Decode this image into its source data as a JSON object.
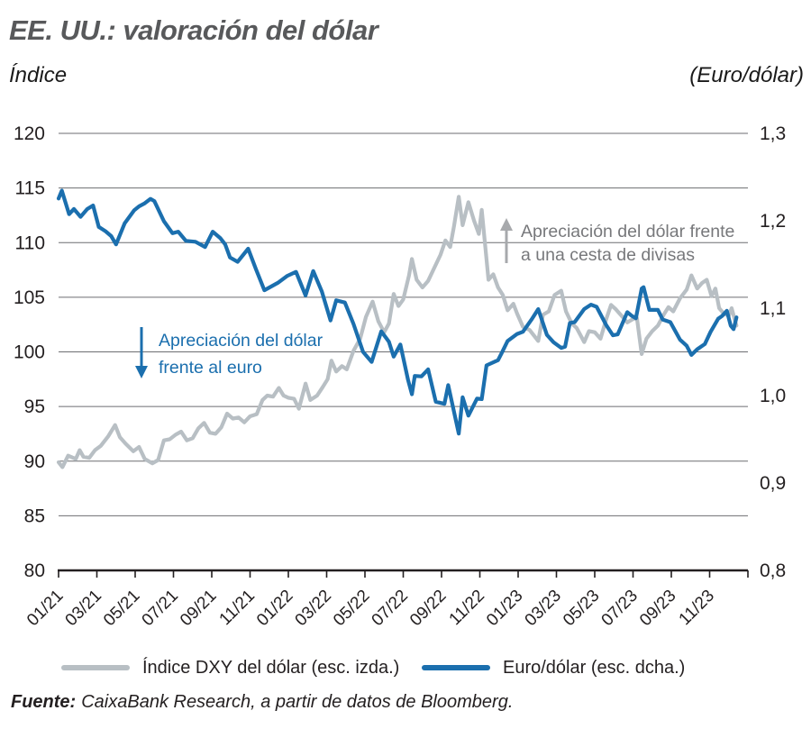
{
  "header": {
    "title": "EE. UU.: valoración del dólar",
    "left_axis_title": "Índice",
    "right_axis_title": "(Euro/dólar)"
  },
  "chart_data": {
    "type": "line",
    "title": "EE. UU.: valoración del dólar",
    "grid": true,
    "x_axis": {
      "unit": "month (01/21 = 0)",
      "span_months": 36,
      "tick_labels": [
        "01/21",
        "03/21",
        "05/21",
        "07/21",
        "09/21",
        "11/21",
        "01/22",
        "03/22",
        "05/22",
        "07/22",
        "09/22",
        "11/22",
        "01/23",
        "03/23",
        "05/23",
        "07/23",
        "09/23",
        "11/23"
      ]
    },
    "left_axis": {
      "label": "Índice",
      "min": 80,
      "max": 120,
      "tick_labels": [
        "120",
        "115",
        "110",
        "105",
        "100",
        "95",
        "90",
        "85",
        "80"
      ]
    },
    "right_axis": {
      "label": "(Euro/dólar)",
      "min": 0.8,
      "max": 1.3,
      "tick_labels": [
        "1,3",
        "1,2",
        "1,1",
        "1,0",
        "0,9",
        "0,8"
      ]
    },
    "series": [
      {
        "name": "Índice DXY del dólar (esc. izda.)",
        "axis": "left",
        "color": "#b8bfc4",
        "points": [
          [
            0.0,
            89.9
          ],
          [
            0.2,
            89.45
          ],
          [
            0.5,
            90.5
          ],
          [
            0.9,
            90.2
          ],
          [
            1.1,
            91.0
          ],
          [
            1.3,
            90.4
          ],
          [
            1.6,
            90.3
          ],
          [
            1.9,
            91.0
          ],
          [
            2.2,
            91.4
          ],
          [
            2.6,
            92.3
          ],
          [
            2.95,
            93.3
          ],
          [
            3.2,
            92.2
          ],
          [
            3.5,
            91.6
          ],
          [
            3.9,
            90.9
          ],
          [
            4.2,
            91.3
          ],
          [
            4.5,
            90.2
          ],
          [
            4.9,
            89.8
          ],
          [
            5.2,
            90.1
          ],
          [
            5.5,
            91.9
          ],
          [
            5.8,
            92.0
          ],
          [
            6.1,
            92.4
          ],
          [
            6.4,
            92.7
          ],
          [
            6.7,
            91.9
          ],
          [
            7.0,
            92.1
          ],
          [
            7.3,
            93.0
          ],
          [
            7.6,
            93.5
          ],
          [
            7.9,
            92.6
          ],
          [
            8.2,
            92.5
          ],
          [
            8.5,
            93.1
          ],
          [
            8.8,
            94.35
          ],
          [
            9.1,
            93.9
          ],
          [
            9.4,
            94.0
          ],
          [
            9.7,
            93.55
          ],
          [
            10.0,
            94.1
          ],
          [
            10.35,
            94.3
          ],
          [
            10.65,
            95.6
          ],
          [
            10.9,
            96.0
          ],
          [
            11.2,
            95.9
          ],
          [
            11.5,
            96.7
          ],
          [
            11.75,
            96.0
          ],
          [
            12.0,
            95.8
          ],
          [
            12.3,
            95.7
          ],
          [
            12.55,
            94.8
          ],
          [
            12.9,
            97.1
          ],
          [
            13.15,
            95.6
          ],
          [
            13.5,
            96.0
          ],
          [
            13.8,
            96.8
          ],
          [
            14.05,
            97.5
          ],
          [
            14.25,
            99.2
          ],
          [
            14.5,
            98.2
          ],
          [
            14.8,
            98.7
          ],
          [
            15.05,
            98.4
          ],
          [
            15.4,
            100.1
          ],
          [
            15.75,
            101.2
          ],
          [
            16.05,
            103.2
          ],
          [
            16.4,
            104.6
          ],
          [
            16.7,
            102.8
          ],
          [
            17.0,
            101.8
          ],
          [
            17.25,
            102.6
          ],
          [
            17.5,
            105.3
          ],
          [
            17.75,
            104.2
          ],
          [
            18.0,
            104.8
          ],
          [
            18.3,
            107.0
          ],
          [
            18.45,
            108.5
          ],
          [
            18.7,
            106.6
          ],
          [
            19.0,
            105.9
          ],
          [
            19.3,
            106.5
          ],
          [
            19.65,
            107.8
          ],
          [
            19.95,
            108.9
          ],
          [
            20.2,
            110.2
          ],
          [
            20.45,
            109.6
          ],
          [
            20.65,
            111.5
          ],
          [
            20.9,
            114.2
          ],
          [
            21.1,
            111.6
          ],
          [
            21.4,
            113.7
          ],
          [
            21.7,
            112.0
          ],
          [
            21.95,
            110.8
          ],
          [
            22.1,
            113.0
          ],
          [
            22.45,
            106.6
          ],
          [
            22.7,
            107.1
          ],
          [
            22.95,
            105.9
          ],
          [
            23.2,
            105.2
          ],
          [
            23.45,
            103.8
          ],
          [
            23.75,
            104.4
          ],
          [
            23.95,
            103.5
          ],
          [
            24.25,
            102.3
          ],
          [
            24.6,
            102.0
          ],
          [
            25.05,
            101.0
          ],
          [
            25.3,
            103.4
          ],
          [
            25.6,
            103.7
          ],
          [
            25.9,
            105.2
          ],
          [
            26.25,
            105.6
          ],
          [
            26.5,
            103.7
          ],
          [
            26.8,
            102.6
          ],
          [
            27.05,
            102.2
          ],
          [
            27.45,
            100.9
          ],
          [
            27.7,
            101.9
          ],
          [
            28.0,
            101.8
          ],
          [
            28.3,
            101.2
          ],
          [
            28.6,
            103.0
          ],
          [
            28.85,
            104.3
          ],
          [
            29.1,
            103.9
          ],
          [
            29.4,
            103.3
          ],
          [
            29.7,
            102.7
          ],
          [
            30.0,
            103.0
          ],
          [
            30.2,
            103.1
          ],
          [
            30.45,
            99.8
          ],
          [
            30.7,
            101.2
          ],
          [
            31.0,
            101.9
          ],
          [
            31.3,
            102.4
          ],
          [
            31.6,
            103.4
          ],
          [
            31.85,
            104.1
          ],
          [
            32.1,
            103.7
          ],
          [
            32.45,
            104.9
          ],
          [
            32.8,
            105.7
          ],
          [
            33.05,
            107.0
          ],
          [
            33.35,
            105.8
          ],
          [
            33.6,
            106.3
          ],
          [
            33.85,
            106.6
          ],
          [
            34.1,
            105.1
          ],
          [
            34.3,
            105.8
          ],
          [
            34.5,
            104.0
          ],
          [
            34.75,
            103.5
          ],
          [
            35.0,
            103.3
          ],
          [
            35.15,
            104.0
          ],
          [
            35.4,
            102.4
          ]
        ]
      },
      {
        "name": "Euro/dólar (esc. dcha.)",
        "axis": "right",
        "color": "#1b6fae",
        "points": [
          [
            0.0,
            1.2255
          ],
          [
            0.17,
            1.2345
          ],
          [
            0.55,
            1.2075
          ],
          [
            0.8,
            1.2135
          ],
          [
            1.15,
            1.2045
          ],
          [
            1.5,
            1.2135
          ],
          [
            1.8,
            1.2175
          ],
          [
            2.1,
            1.193
          ],
          [
            2.45,
            1.188
          ],
          [
            2.75,
            1.1825
          ],
          [
            3.0,
            1.173
          ],
          [
            3.45,
            1.197
          ],
          [
            3.95,
            1.212
          ],
          [
            4.2,
            1.2165
          ],
          [
            4.5,
            1.22
          ],
          [
            4.8,
            1.225
          ],
          [
            5.0,
            1.2225
          ],
          [
            5.5,
            1.1995
          ],
          [
            5.95,
            1.1858
          ],
          [
            6.25,
            1.1875
          ],
          [
            6.65,
            1.177
          ],
          [
            7.15,
            1.176
          ],
          [
            7.65,
            1.17
          ],
          [
            8.05,
            1.1875
          ],
          [
            8.45,
            1.18
          ],
          [
            8.7,
            1.173
          ],
          [
            8.95,
            1.158
          ],
          [
            9.35,
            1.153
          ],
          [
            9.9,
            1.168
          ],
          [
            10.3,
            1.145
          ],
          [
            10.75,
            1.1205
          ],
          [
            11.45,
            1.129
          ],
          [
            11.95,
            1.137
          ],
          [
            12.4,
            1.1415
          ],
          [
            12.9,
            1.1145
          ],
          [
            13.3,
            1.1425
          ],
          [
            13.75,
            1.119
          ],
          [
            14.2,
            1.086
          ],
          [
            14.5,
            1.109
          ],
          [
            14.95,
            1.1065
          ],
          [
            15.4,
            1.082
          ],
          [
            15.9,
            1.05
          ],
          [
            16.35,
            1.0385
          ],
          [
            16.85,
            1.0735
          ],
          [
            17.25,
            1.0615
          ],
          [
            17.5,
            1.0445
          ],
          [
            17.85,
            1.0585
          ],
          [
            18.25,
            1.018
          ],
          [
            18.45,
            1.0015
          ],
          [
            18.6,
            1.0225
          ],
          [
            18.95,
            1.022
          ],
          [
            19.3,
            1.03
          ],
          [
            19.7,
            0.993
          ],
          [
            20.15,
            0.9905
          ],
          [
            20.35,
            1.012
          ],
          [
            20.9,
            0.9565
          ],
          [
            21.1,
            0.998
          ],
          [
            21.4,
            0.977
          ],
          [
            21.85,
            0.9965
          ],
          [
            22.1,
            0.996
          ],
          [
            22.35,
            1.0345
          ],
          [
            22.95,
            1.0405
          ],
          [
            23.15,
            1.049
          ],
          [
            23.45,
            1.0625
          ],
          [
            23.95,
            1.0705
          ],
          [
            24.25,
            1.073
          ],
          [
            24.7,
            1.087
          ],
          [
            25.05,
            1.099
          ],
          [
            25.5,
            1.0695
          ],
          [
            25.85,
            1.061
          ],
          [
            26.25,
            1.0545
          ],
          [
            26.45,
            1.056
          ],
          [
            26.7,
            1.083
          ],
          [
            26.95,
            1.084
          ],
          [
            27.45,
            1.099
          ],
          [
            27.8,
            1.104
          ],
          [
            28.1,
            1.1015
          ],
          [
            28.6,
            1.0805
          ],
          [
            28.95,
            1.069
          ],
          [
            29.2,
            1.07
          ],
          [
            29.7,
            1.0955
          ],
          [
            29.95,
            1.091
          ],
          [
            30.15,
            1.0885
          ],
          [
            30.45,
            1.1225
          ],
          [
            30.55,
            1.124
          ],
          [
            30.85,
            1.098
          ],
          [
            31.3,
            1.098
          ],
          [
            31.55,
            1.087
          ],
          [
            31.95,
            1.084
          ],
          [
            32.45,
            1.064
          ],
          [
            32.8,
            1.057
          ],
          [
            33.05,
            1.0465
          ],
          [
            33.35,
            1.053
          ],
          [
            33.75,
            1.059
          ],
          [
            34.05,
            1.073
          ],
          [
            34.45,
            1.088
          ],
          [
            34.65,
            1.091
          ],
          [
            34.9,
            1.097
          ],
          [
            35.1,
            1.08
          ],
          [
            35.25,
            1.076
          ],
          [
            35.4,
            1.0895
          ]
        ]
      }
    ],
    "annotations": [
      {
        "text_lines": [
          "Apreciación del dólar frente",
          "a una cesta de divisas"
        ],
        "arrow": "up",
        "text_color": "#77787b",
        "arrow_color": "#a7a9ac"
      },
      {
        "text_lines": [
          "Apreciación del dólar",
          "frente al euro"
        ],
        "arrow": "down",
        "text_color": "#1b6fae",
        "arrow_color": "#1b6fae"
      }
    ],
    "legend_position": "bottom"
  },
  "legend": {
    "items": [
      {
        "label": "Índice DXY del dólar (esc. izda.)",
        "color": "#b8bfc4"
      },
      {
        "label": "Euro/dólar (esc. dcha.)",
        "color": "#1b6fae"
      }
    ]
  },
  "footer": {
    "source_label": "Fuente:",
    "source_text": "CaixaBank Research, a partir de datos de Bloomberg."
  },
  "colors": {
    "gridline": "#6d6e71",
    "axis": "#231f20",
    "title": "#58595b"
  }
}
